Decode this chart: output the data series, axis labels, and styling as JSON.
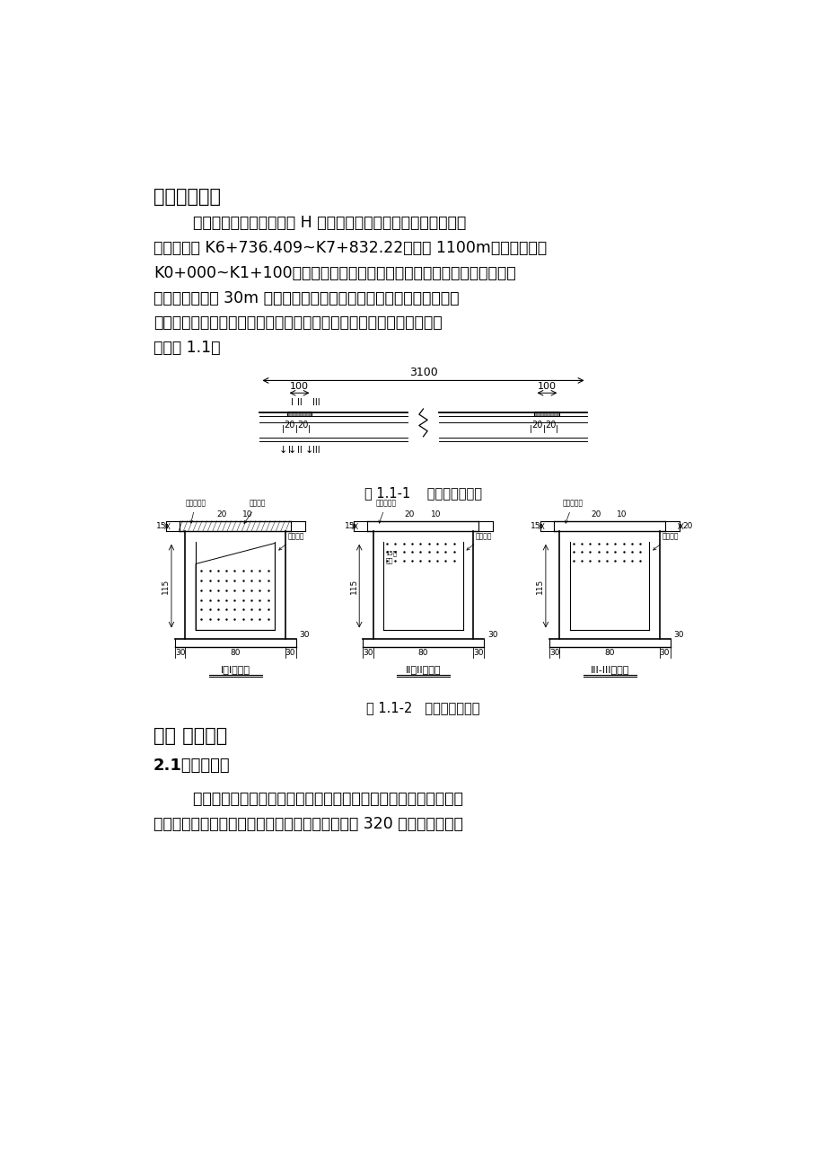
{
  "bg_color": "#ffffff",
  "page_width": 9.2,
  "page_height": 13.02,
  "section1_title": "一、工程概况",
  "fig1_caption": "图 1.1-1    排水边沟立面图",
  "fig2_caption": "图 1.1-2   排水边沟剖面图",
  "section2_title": "二、 施工工艺",
  "subsection21_title": "2.1、边沟开挖",
  "para1_lines": [
    "        慈母山隧道及连接道工程 H 标段为温家溪大桥后至通江大道，起",
    "讫点桩号为 K6+736.409~K7+832.22，全长 1100m。独立桩号为",
    "K0+000~K1+100，该标段排水方式采用道路两侧修建排水沟，排水沟为",
    "全覆盖式，每隔 30m 设置一道进水口，将路面雨水排入水沟，进水口",
    "设置一道雨水篦子，雨水篦子采用钢筋网片制作，排水沟立面图及截面",
    "图见图 1.1："
  ],
  "para2_lines": [
    "        本工段大部分为挖方段，排水沟所处位置地质大多为普坚石，开挖",
    "困难，为加快施工进度，保证施工工期，考虑采用 320 炮机进行开挖成"
  ]
}
